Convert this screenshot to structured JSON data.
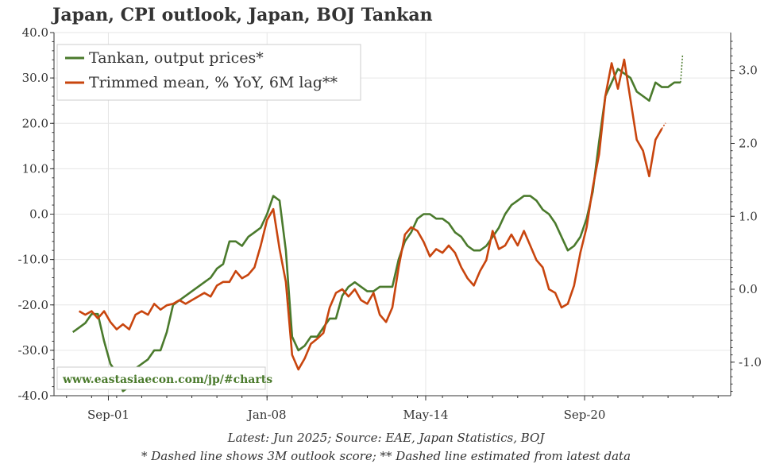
{
  "chart_data": {
    "type": "line",
    "title": "Japan, CPI outlook, Japan, BOJ Tankan",
    "watermark": "www.eastasiaecon.com/jp/#charts",
    "notes": [
      "Latest: Jun 2025; Source: EAE, Japan Statistics, BOJ",
      "* Dashed line shows 3M outlook score; ** Dashed line estimated from latest data"
    ],
    "x_axis": {
      "ticks": [
        "Sep-01",
        "Jan-08",
        "May-14",
        "Sep-20"
      ],
      "tick_years": [
        2001.67,
        2008.0,
        2014.33,
        2020.67
      ],
      "range": [
        1999.5,
        2026.5
      ]
    },
    "y_left": {
      "range": [
        -40,
        40
      ],
      "ticks": [
        "40.0",
        "30.0",
        "20.0",
        "10.0",
        "0.0",
        "-10.0",
        "-20.0",
        "-30.0",
        "-40.0"
      ]
    },
    "y_right": {
      "range": [
        -1.46,
        3.52
      ],
      "ticks": [
        "3.0",
        "2.0",
        "1.0",
        "0.0",
        "-1.0"
      ]
    },
    "grid": true,
    "legend": "top-left",
    "colors": {
      "tankan": "#4a7a2c",
      "trimmed": "#c8450e",
      "grid": "#e6e6e6",
      "axis": "#333333"
    },
    "series": [
      {
        "name": "Tankan, output prices*",
        "axis": "left",
        "color": "#4a7a2c",
        "points": [
          [
            2000.25,
            -26
          ],
          [
            2000.5,
            -25
          ],
          [
            2000.75,
            -24
          ],
          [
            2001.0,
            -22
          ],
          [
            2001.25,
            -22
          ],
          [
            2001.5,
            -28
          ],
          [
            2001.75,
            -33
          ],
          [
            2002.0,
            -35
          ],
          [
            2002.25,
            -39
          ],
          [
            2002.5,
            -38
          ],
          [
            2002.75,
            -34
          ],
          [
            2003.0,
            -33
          ],
          [
            2003.25,
            -32
          ],
          [
            2003.5,
            -30
          ],
          [
            2003.75,
            -30
          ],
          [
            2004.0,
            -26
          ],
          [
            2004.25,
            -20
          ],
          [
            2004.5,
            -19
          ],
          [
            2004.75,
            -18
          ],
          [
            2005.0,
            -17
          ],
          [
            2005.25,
            -16
          ],
          [
            2005.5,
            -15
          ],
          [
            2005.75,
            -14
          ],
          [
            2006.0,
            -12
          ],
          [
            2006.25,
            -11
          ],
          [
            2006.5,
            -6
          ],
          [
            2006.75,
            -6
          ],
          [
            2007.0,
            -7
          ],
          [
            2007.25,
            -5
          ],
          [
            2007.5,
            -4
          ],
          [
            2007.75,
            -3
          ],
          [
            2008.0,
            0
          ],
          [
            2008.25,
            4
          ],
          [
            2008.5,
            3
          ],
          [
            2008.75,
            -8
          ],
          [
            2009.0,
            -27
          ],
          [
            2009.25,
            -30
          ],
          [
            2009.5,
            -29
          ],
          [
            2009.75,
            -27
          ],
          [
            2010.0,
            -27
          ],
          [
            2010.25,
            -25
          ],
          [
            2010.5,
            -23
          ],
          [
            2010.75,
            -23
          ],
          [
            2011.0,
            -18
          ],
          [
            2011.25,
            -16
          ],
          [
            2011.5,
            -15
          ],
          [
            2011.75,
            -16
          ],
          [
            2012.0,
            -17
          ],
          [
            2012.25,
            -17
          ],
          [
            2012.5,
            -16
          ],
          [
            2012.75,
            -16
          ],
          [
            2013.0,
            -16
          ],
          [
            2013.25,
            -10
          ],
          [
            2013.5,
            -6
          ],
          [
            2013.75,
            -4
          ],
          [
            2014.0,
            -1
          ],
          [
            2014.25,
            0
          ],
          [
            2014.5,
            0
          ],
          [
            2014.75,
            -1
          ],
          [
            2015.0,
            -1
          ],
          [
            2015.25,
            -2
          ],
          [
            2015.5,
            -4
          ],
          [
            2015.75,
            -5
          ],
          [
            2016.0,
            -7
          ],
          [
            2016.25,
            -8
          ],
          [
            2016.5,
            -8
          ],
          [
            2016.75,
            -7
          ],
          [
            2017.0,
            -5
          ],
          [
            2017.25,
            -3
          ],
          [
            2017.5,
            0
          ],
          [
            2017.75,
            2
          ],
          [
            2018.0,
            3
          ],
          [
            2018.25,
            4
          ],
          [
            2018.5,
            4
          ],
          [
            2018.75,
            3
          ],
          [
            2019.0,
            1
          ],
          [
            2019.25,
            0
          ],
          [
            2019.5,
            -2
          ],
          [
            2019.75,
            -5
          ],
          [
            2020.0,
            -8
          ],
          [
            2020.25,
            -7
          ],
          [
            2020.5,
            -5
          ],
          [
            2020.75,
            -1
          ],
          [
            2021.0,
            5
          ],
          [
            2021.25,
            16
          ],
          [
            2021.5,
            26
          ],
          [
            2021.75,
            29
          ],
          [
            2022.0,
            32
          ],
          [
            2022.25,
            31
          ],
          [
            2022.5,
            30
          ],
          [
            2022.75,
            27
          ],
          [
            2023.0,
            26
          ],
          [
            2023.25,
            25
          ],
          [
            2023.5,
            29
          ],
          [
            2023.75,
            28
          ],
          [
            2024.0,
            28
          ],
          [
            2024.25,
            29
          ],
          [
            2024.5,
            29
          ]
        ],
        "outlook_points": [
          [
            2024.5,
            29
          ],
          [
            2024.58,
            35
          ]
        ]
      },
      {
        "name": "Trimmed mean, % YoY, 6M lag**",
        "axis": "right",
        "color": "#c8450e",
        "points": [
          [
            2000.5,
            -0.3
          ],
          [
            2000.75,
            -0.35
          ],
          [
            2001.0,
            -0.3
          ],
          [
            2001.25,
            -0.4
          ],
          [
            2001.5,
            -0.3
          ],
          [
            2001.75,
            -0.45
          ],
          [
            2002.0,
            -0.55
          ],
          [
            2002.25,
            -0.48
          ],
          [
            2002.5,
            -0.55
          ],
          [
            2002.75,
            -0.35
          ],
          [
            2003.0,
            -0.3
          ],
          [
            2003.25,
            -0.35
          ],
          [
            2003.5,
            -0.2
          ],
          [
            2003.75,
            -0.28
          ],
          [
            2004.0,
            -0.22
          ],
          [
            2004.25,
            -0.2
          ],
          [
            2004.5,
            -0.15
          ],
          [
            2004.75,
            -0.2
          ],
          [
            2005.0,
            -0.15
          ],
          [
            2005.25,
            -0.1
          ],
          [
            2005.5,
            -0.05
          ],
          [
            2005.75,
            -0.1
          ],
          [
            2006.0,
            0.05
          ],
          [
            2006.25,
            0.1
          ],
          [
            2006.5,
            0.1
          ],
          [
            2006.75,
            0.25
          ],
          [
            2007.0,
            0.15
          ],
          [
            2007.25,
            0.2
          ],
          [
            2007.5,
            0.3
          ],
          [
            2007.75,
            0.6
          ],
          [
            2008.0,
            0.95
          ],
          [
            2008.25,
            1.1
          ],
          [
            2008.5,
            0.55
          ],
          [
            2008.75,
            0.1
          ],
          [
            2009.0,
            -0.9
          ],
          [
            2009.25,
            -1.1
          ],
          [
            2009.5,
            -0.95
          ],
          [
            2009.75,
            -0.75
          ],
          [
            2010.0,
            -0.68
          ],
          [
            2010.25,
            -0.6
          ],
          [
            2010.5,
            -0.25
          ],
          [
            2010.75,
            -0.05
          ],
          [
            2011.0,
            0.0
          ],
          [
            2011.25,
            -0.1
          ],
          [
            2011.5,
            0.0
          ],
          [
            2011.75,
            -0.15
          ],
          [
            2012.0,
            -0.2
          ],
          [
            2012.25,
            -0.05
          ],
          [
            2012.5,
            -0.35
          ],
          [
            2012.75,
            -0.45
          ],
          [
            2013.0,
            -0.25
          ],
          [
            2013.25,
            0.3
          ],
          [
            2013.5,
            0.75
          ],
          [
            2013.75,
            0.85
          ],
          [
            2014.0,
            0.8
          ],
          [
            2014.25,
            0.65
          ],
          [
            2014.5,
            0.45
          ],
          [
            2014.75,
            0.55
          ],
          [
            2015.0,
            0.5
          ],
          [
            2015.25,
            0.6
          ],
          [
            2015.5,
            0.5
          ],
          [
            2015.75,
            0.3
          ],
          [
            2016.0,
            0.15
          ],
          [
            2016.25,
            0.05
          ],
          [
            2016.5,
            0.25
          ],
          [
            2016.75,
            0.4
          ],
          [
            2017.0,
            0.8
          ],
          [
            2017.25,
            0.55
          ],
          [
            2017.5,
            0.6
          ],
          [
            2017.75,
            0.75
          ],
          [
            2018.0,
            0.6
          ],
          [
            2018.25,
            0.8
          ],
          [
            2018.5,
            0.6
          ],
          [
            2018.75,
            0.4
          ],
          [
            2019.0,
            0.3
          ],
          [
            2019.25,
            0.0
          ],
          [
            2019.5,
            -0.05
          ],
          [
            2019.75,
            -0.25
          ],
          [
            2020.0,
            -0.2
          ],
          [
            2020.25,
            0.05
          ],
          [
            2020.5,
            0.5
          ],
          [
            2020.75,
            0.85
          ],
          [
            2021.0,
            1.4
          ],
          [
            2021.25,
            1.85
          ],
          [
            2021.5,
            2.65
          ],
          [
            2021.75,
            3.1
          ],
          [
            2022.0,
            2.75
          ],
          [
            2022.25,
            3.15
          ],
          [
            2022.5,
            2.6
          ],
          [
            2022.75,
            2.05
          ],
          [
            2023.0,
            1.9
          ],
          [
            2023.25,
            1.55
          ],
          [
            2023.5,
            2.05
          ],
          [
            2023.75,
            2.2
          ]
        ],
        "estimated_points": [
          [
            2023.75,
            2.2
          ],
          [
            2023.9,
            2.28
          ]
        ]
      }
    ]
  }
}
